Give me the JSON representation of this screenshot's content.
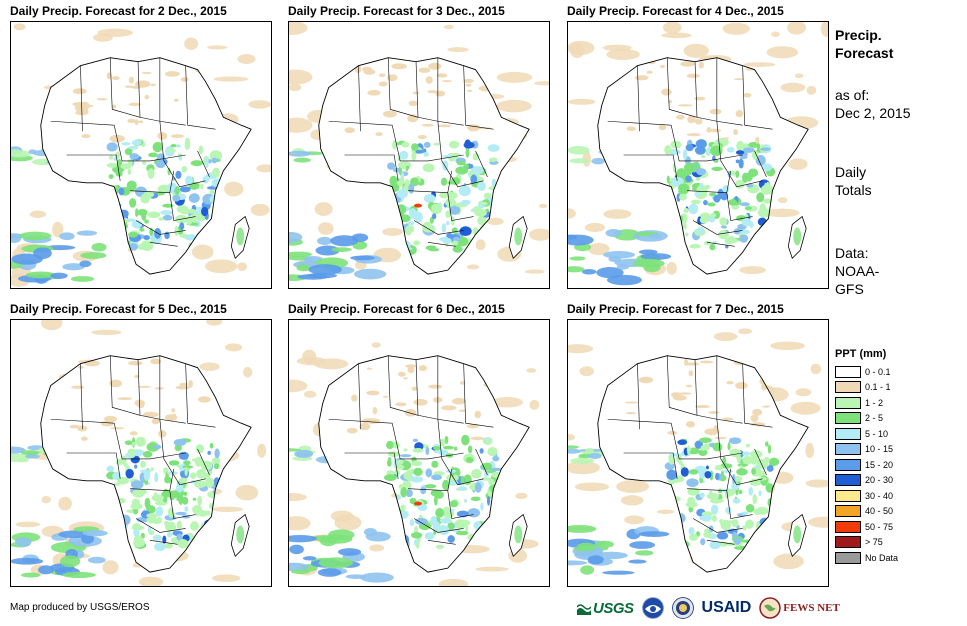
{
  "panels": [
    {
      "title": "Daily Precip. Forecast for 2 Dec., 2015"
    },
    {
      "title": "Daily Precip. Forecast for 3 Dec., 2015"
    },
    {
      "title": "Daily Precip. Forecast for 4 Dec., 2015"
    },
    {
      "title": "Daily Precip. Forecast for 5 Dec., 2015"
    },
    {
      "title": "Daily Precip. Forecast for 6 Dec., 2015"
    },
    {
      "title": "Daily Precip. Forecast for 7 Dec., 2015"
    }
  ],
  "side": {
    "title_line1": "Precip.",
    "title_line2": "Forecast",
    "asof_line1": "as of:",
    "asof_line2": "Dec 2, 2015",
    "totals_line1": "Daily",
    "totals_line2": "Totals",
    "data_line1": "Data:",
    "data_line2": "NOAA-",
    "data_line3": "GFS"
  },
  "legend": {
    "title": "PPT (mm)",
    "items": [
      {
        "label": "0 - 0.1",
        "color": "#ffffff"
      },
      {
        "label": "0.1 - 1",
        "color": "#f0d9b5"
      },
      {
        "label": "1 - 2",
        "color": "#b9f5b3"
      },
      {
        "label": "2 - 5",
        "color": "#7de27a"
      },
      {
        "label": "5 - 10",
        "color": "#b3ecf5"
      },
      {
        "label": "10 - 15",
        "color": "#8ec3f0"
      },
      {
        "label": "15 - 20",
        "color": "#5a9bea"
      },
      {
        "label": "20 - 30",
        "color": "#1f5fd6"
      },
      {
        "label": "30 - 40",
        "color": "#fde98c"
      },
      {
        "label": "40 - 50",
        "color": "#f5a524"
      },
      {
        "label": "50 - 75",
        "color": "#f03c0c"
      },
      {
        "label": "> 75",
        "color": "#a11a1a"
      },
      {
        "label": "No Data",
        "color": "#9a9a9a"
      }
    ]
  },
  "credit": "Map produced by USGS/EROS",
  "logos": {
    "usgs": "USGS",
    "usaid": "USAID",
    "fews": "FEWS NET"
  }
}
